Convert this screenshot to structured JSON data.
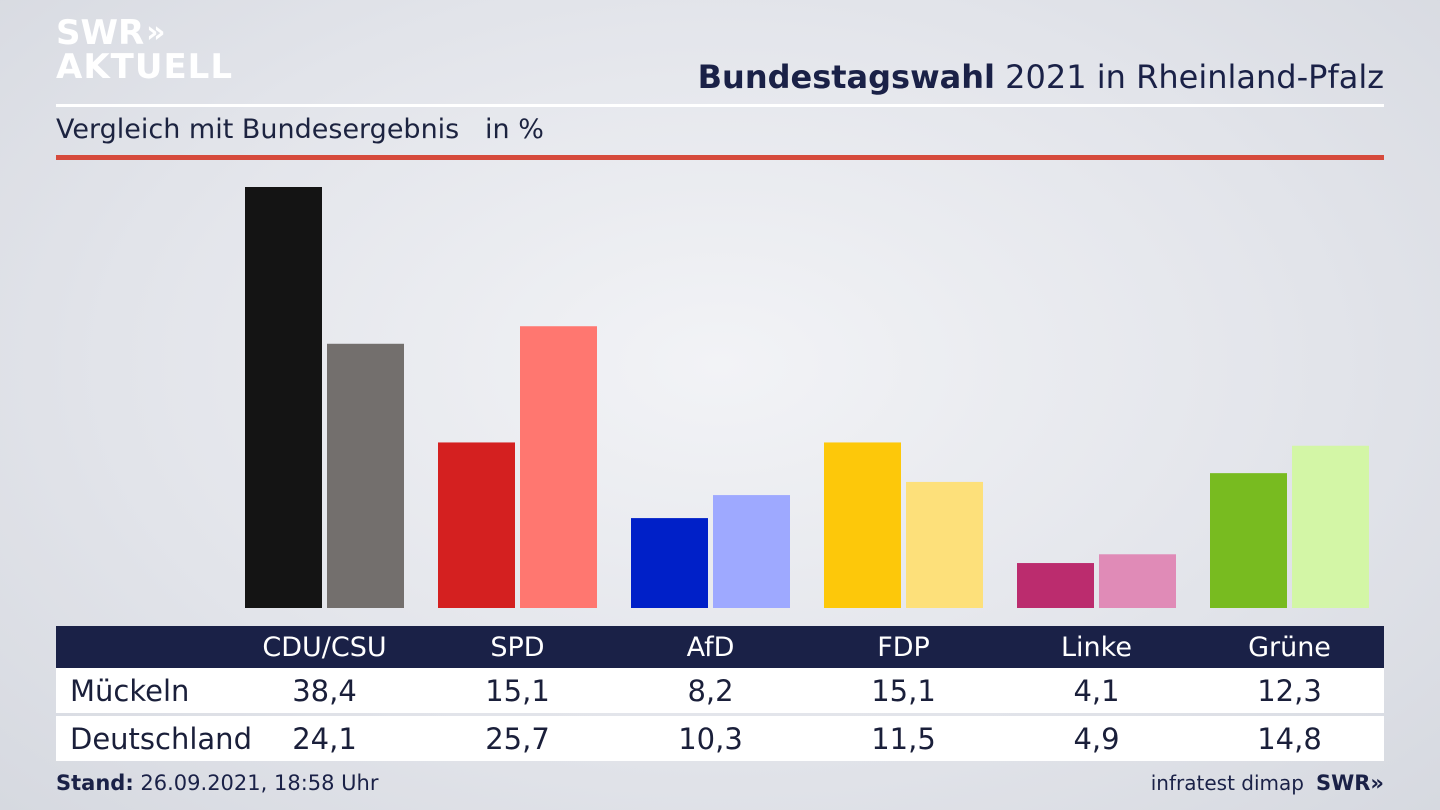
{
  "logo": {
    "line1": "SWR",
    "line2": "AKTUELL",
    "chevrons": "»"
  },
  "header": {
    "title_bold": "Bundestagswahl",
    "title_rest": " 2021 in Rheinland-Pfalz",
    "subtitle": "Vergleich mit Bundesergebnis   in %"
  },
  "colors": {
    "local": [
      "#141414",
      "#d42020",
      "#0020c8",
      "#fdc80a",
      "#bb2c6e",
      "#78bb20"
    ],
    "national": [
      "#736f6d",
      "#ff7770",
      "#9ea9ff",
      "#fde07a",
      "#e08bb7",
      "#d3f6a6"
    ],
    "header_bg": "#1a2147",
    "accent_red": "#d64a3c"
  },
  "chart_data": {
    "type": "bar",
    "categories": [
      "CDU/CSU",
      "SPD",
      "AfD",
      "FDP",
      "Linke",
      "Grüne"
    ],
    "series": [
      {
        "name": "Mückeln",
        "values": [
          38.4,
          15.1,
          8.2,
          15.1,
          4.1,
          12.3
        ]
      },
      {
        "name": "Deutschland",
        "values": [
          24.1,
          25.7,
          10.3,
          11.5,
          4.9,
          14.8
        ]
      }
    ],
    "ylim": [
      0,
      38.4
    ],
    "display_values": {
      "Mückeln": [
        "38,4",
        "15,1",
        "8,2",
        "15,1",
        "4,1",
        "12,3"
      ],
      "Deutschland": [
        "24,1",
        "25,7",
        "10,3",
        "11,5",
        "4,9",
        "14,8"
      ]
    }
  },
  "footer": {
    "stand_label": "Stand:",
    "stand_value": " 26.09.2021, 18:58 Uhr",
    "source": "infratest dimap",
    "brand": "SWR",
    "brand_chevrons": "»"
  }
}
